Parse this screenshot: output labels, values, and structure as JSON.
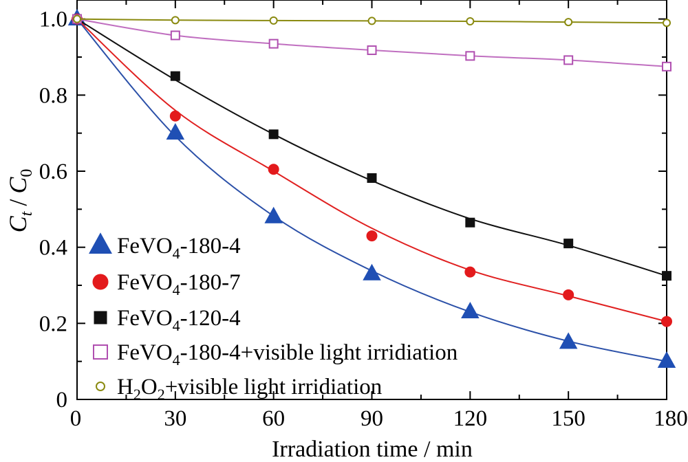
{
  "chart_data": {
    "type": "line",
    "xlabel": "Irradiation time / min",
    "ylabel": {
      "C": "C",
      "t": "t",
      "slash": "/",
      "C0": "C",
      "zero": "0"
    },
    "xlim": [
      0,
      180
    ],
    "ylim": [
      0,
      1.05
    ],
    "xticks": [
      "0",
      "30",
      "60",
      "90",
      "120",
      "150",
      "180"
    ],
    "yticks": [
      "0",
      "0.2",
      "0.4",
      "0.6",
      "0.8",
      "1.0"
    ],
    "grid": false,
    "legend_position": "lower-left",
    "x": [
      0,
      30,
      60,
      90,
      120,
      150,
      180
    ],
    "series": [
      {
        "name": "FeVO4-180-4",
        "legend": {
          "pre": "FeVO",
          "sub1": "4",
          "mid": "-180-4",
          "sub2": "",
          "post": ""
        },
        "values": [
          1.0,
          0.7,
          0.48,
          0.33,
          0.23,
          0.15,
          0.1
        ],
        "fit": [
          1.0,
          0.692,
          0.482,
          0.338,
          0.23,
          0.153,
          0.1
        ],
        "marker": "triangle",
        "color": "#1f4fb4",
        "line_color": "#2b50a8",
        "filled": true
      },
      {
        "name": "FeVO4-180-7",
        "legend": {
          "pre": "FeVO",
          "sub1": "4",
          "mid": "-180-7",
          "sub2": "",
          "post": ""
        },
        "values": [
          1.0,
          0.745,
          0.605,
          0.43,
          0.335,
          0.275,
          0.205
        ],
        "fit": [
          1.0,
          0.76,
          0.6,
          0.45,
          0.34,
          0.272,
          0.205
        ],
        "marker": "circle",
        "color": "#e31a1c",
        "line_color": "#e02020",
        "filled": true
      },
      {
        "name": "FeVO4-120-4",
        "legend": {
          "pre": "FeVO",
          "sub1": "4",
          "mid": "-120-4",
          "sub2": "",
          "post": ""
        },
        "values": [
          1.0,
          0.85,
          0.697,
          0.582,
          0.465,
          0.41,
          0.325
        ],
        "fit": [
          1.0,
          0.84,
          0.697,
          0.575,
          0.475,
          0.405,
          0.325
        ],
        "marker": "square",
        "color": "#111111",
        "line_color": "#111111",
        "filled": true
      },
      {
        "name": "FeVO4-180-4+visible light irridiation",
        "legend": {
          "pre": "FeVO",
          "sub1": "4",
          "mid": "-180-4+visible light irridiation",
          "sub2": "",
          "post": ""
        },
        "values": [
          1.0,
          0.957,
          0.935,
          0.918,
          0.903,
          0.892,
          0.875
        ],
        "fit": [
          1.0,
          0.957,
          0.935,
          0.918,
          0.903,
          0.892,
          0.875
        ],
        "marker": "square",
        "color": "#b04fb0",
        "line_color": "#c06fc0",
        "filled": false
      },
      {
        "name": "H2O2+visible light irridiation",
        "legend": {
          "pre": "H",
          "sub1": "2",
          "mid": "O",
          "sub2": "2",
          "post": "+visible light irridiation"
        },
        "values": [
          1.0,
          0.997,
          0.996,
          0.995,
          0.994,
          0.992,
          0.99
        ],
        "fit": [
          1.0,
          0.997,
          0.996,
          0.995,
          0.994,
          0.992,
          0.99
        ],
        "marker": "circle",
        "color": "#8a8a10",
        "line_color": "#8a8a10",
        "filled": false
      }
    ]
  }
}
